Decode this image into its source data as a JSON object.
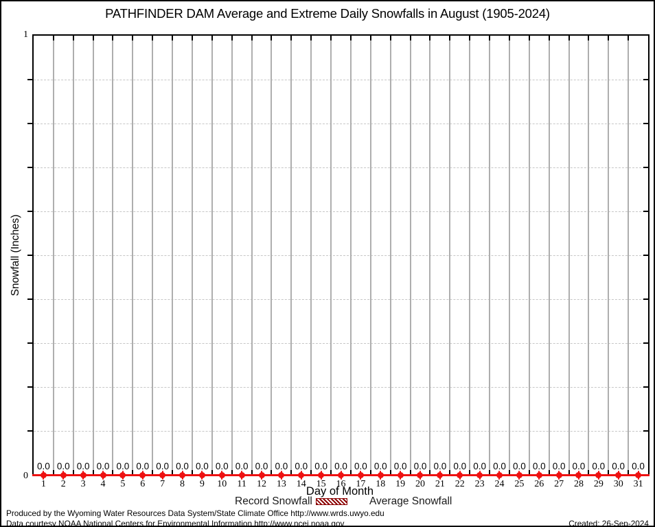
{
  "title": "PATHFINDER DAM Average and Extreme Daily Snowfalls in August (1905-2024)",
  "y_axis": {
    "label": "Snowfall (Inches)",
    "max_label": "1",
    "min_label": "0"
  },
  "x_axis": {
    "label": "Day of Month"
  },
  "legend": {
    "record": {
      "label": "Record Snowfall",
      "swatch": "hatched-box",
      "color": "#8b0000"
    },
    "average": {
      "label": "Average Snowfall",
      "swatch": "line-with-point",
      "color": "#ee1111"
    }
  },
  "footer": {
    "line1": "Produced by the Wyoming Water Resources Data System/State Climate Office http://www.wrds.uwyo.edu",
    "line2": "Data courtesy NOAA National Centers for Environmental Information http://www.ncei.noaa.gov",
    "created": "Created: 26-Sep-2024"
  },
  "colors": {
    "series_red": "#ee1111",
    "record_dark_red": "#8b0000",
    "grid_vertical": "#aeaeae",
    "grid_horizontal": "#c6c6c6"
  },
  "chart_data": {
    "type": "line",
    "title": "PATHFINDER DAM Average and Extreme Daily Snowfalls in August (1905-2024)",
    "xlabel": "Day of Month",
    "ylabel": "Snowfall (Inches)",
    "x": [
      1,
      2,
      3,
      4,
      5,
      6,
      7,
      8,
      9,
      10,
      11,
      12,
      13,
      14,
      15,
      16,
      17,
      18,
      19,
      20,
      21,
      22,
      23,
      24,
      25,
      26,
      27,
      28,
      29,
      30,
      31
    ],
    "series": [
      {
        "name": "Record Snowfall",
        "style": "hatched-bar",
        "values": [
          0,
          0,
          0,
          0,
          0,
          0,
          0,
          0,
          0,
          0,
          0,
          0,
          0,
          0,
          0,
          0,
          0,
          0,
          0,
          0,
          0,
          0,
          0,
          0,
          0,
          0,
          0,
          0,
          0,
          0,
          0
        ]
      },
      {
        "name": "Average Snowfall",
        "style": "line-points",
        "values": [
          0,
          0,
          0,
          0,
          0,
          0,
          0,
          0,
          0,
          0,
          0,
          0,
          0,
          0,
          0,
          0,
          0,
          0,
          0,
          0,
          0,
          0,
          0,
          0,
          0,
          0,
          0,
          0,
          0,
          0,
          0
        ]
      }
    ],
    "point_labels": [
      "0.0",
      "0.0",
      "0.0",
      "0.0",
      "0.0",
      "0.0",
      "0.0",
      "0.0",
      "0.0",
      "0.0",
      "0.0",
      "0.0",
      "0.0",
      "0.0",
      "0.0",
      "0.0",
      "0.0",
      "0.0",
      "0.0",
      "0.0",
      "0.0",
      "0.0",
      "0.0",
      "0.0",
      "0.0",
      "0.0",
      "0.0",
      "0.0",
      "0.0",
      "0.0",
      "0.0"
    ],
    "ylim": [
      0,
      1
    ],
    "y_major_ticks": [
      0,
      1
    ],
    "y_minor_step": 0.1,
    "grid": {
      "vertical": "solid gray lines at day boundaries",
      "horizontal": "dashed gray lines every 0.1"
    },
    "legend_position": "bottom-center"
  }
}
